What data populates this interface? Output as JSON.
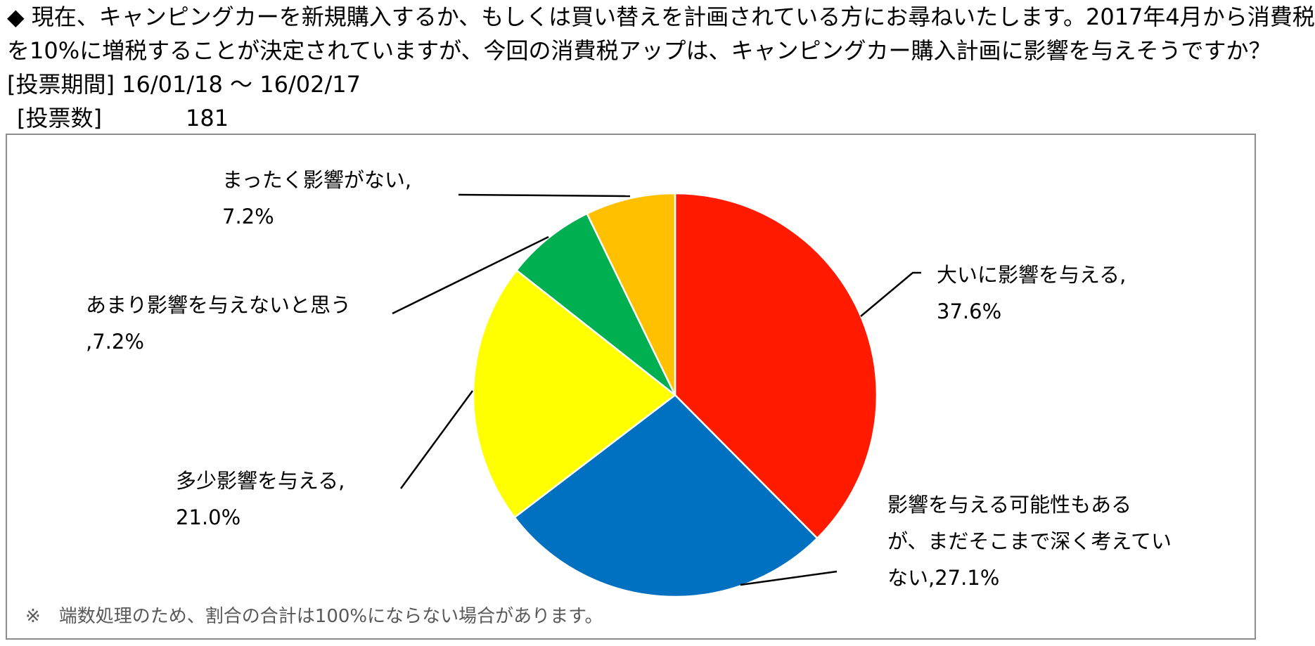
{
  "header": {
    "line1": "◆ 現在、キャンピングカーを新規購入するか、もしくは買い替えを計画されている方にお尋ねいたします。2017年4月から消費税",
    "line2": "を10%に増税することが決定されていますが、今回の消費税アップは、キャンピングカー購入計画に影響を与えそうですか？",
    "period_label": "[投票期間]",
    "period_value": "16/01/18 ～ 16/02/17",
    "votes_label": "[投票数]",
    "votes_value": "181"
  },
  "note": "※　端数処理のため、割合の合計は100%にならない場合があります。",
  "chart_data": {
    "type": "pie",
    "start_angle_deg": 0,
    "direction": "clockwise",
    "slices": [
      {
        "category": "大いに影響を与える",
        "value": 37.6,
        "label": "大いに影響を与える,\n37.6%",
        "color": "#FF1A00"
      },
      {
        "category": "影響を与える可能性もあるが、まだそこまで深く考えていない",
        "value": 27.1,
        "label": "影響を与える可能性もある\nが、まだそこまで深く考えてい\nない,27.1%",
        "color": "#0070C0"
      },
      {
        "category": "多少影響を与える",
        "value": 21.0,
        "label": "多少影響を与える,\n21.0%",
        "color": "#FFFF00"
      },
      {
        "category": "あまり影響を与えないと思う",
        "value": 7.2,
        "label": "あまり影響を与えないと思う\n,7.2%",
        "color": "#00B050"
      },
      {
        "category": "まったく影響がない",
        "value": 7.2,
        "label": "まったく影響がない,\n7.2%",
        "color": "#FFC000"
      }
    ]
  }
}
